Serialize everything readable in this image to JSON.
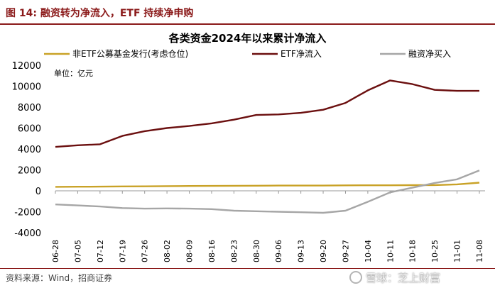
{
  "figure": {
    "title": "图 14: 融资转为净流入，ETF 持续净申购",
    "source": "资料来源：Wind，招商证券",
    "watermark": "雪球：芝上财富",
    "accent_color": "#8B1A1A"
  },
  "chart_data": {
    "type": "line",
    "title": "各类资金2024年以来累计净流入",
    "unit_label": "单位：亿元",
    "legend_position": "top",
    "grid": false,
    "ylim": [
      -4000,
      12000
    ],
    "yticks": [
      "-4000",
      "-2000",
      "0",
      "2000",
      "4000",
      "6000",
      "8000",
      "10000",
      "12000"
    ],
    "x": [
      "06-28",
      "07-05",
      "07-12",
      "07-19",
      "07-26",
      "08-02",
      "08-09",
      "08-16",
      "08-23",
      "08-30",
      "09-06",
      "09-13",
      "09-20",
      "09-27",
      "10-04",
      "10-11",
      "10-18",
      "10-25",
      "11-01",
      "11-08"
    ],
    "series": [
      {
        "name": "非ETF公募基金发行(考虑仓位)",
        "color": "#C9A227",
        "values": [
          380,
          390,
          400,
          420,
          430,
          450,
          460,
          470,
          480,
          490,
          500,
          500,
          500,
          520,
          530,
          530,
          540,
          550,
          620,
          780
        ]
      },
      {
        "name": "ETF净流入",
        "color": "#6B0F0F",
        "values": [
          4200,
          4350,
          4450,
          5250,
          5700,
          6000,
          6200,
          6450,
          6800,
          7250,
          7300,
          7450,
          7750,
          8400,
          9600,
          10550,
          10200,
          9650,
          9550,
          9550
        ]
      },
      {
        "name": "融资净买入",
        "color": "#A6A6A6",
        "values": [
          -1300,
          -1400,
          -1500,
          -1650,
          -1700,
          -1680,
          -1700,
          -1750,
          -1900,
          -1950,
          -2000,
          -2050,
          -2100,
          -1900,
          -1050,
          -150,
          300,
          750,
          1100,
          1950
        ]
      }
    ]
  }
}
